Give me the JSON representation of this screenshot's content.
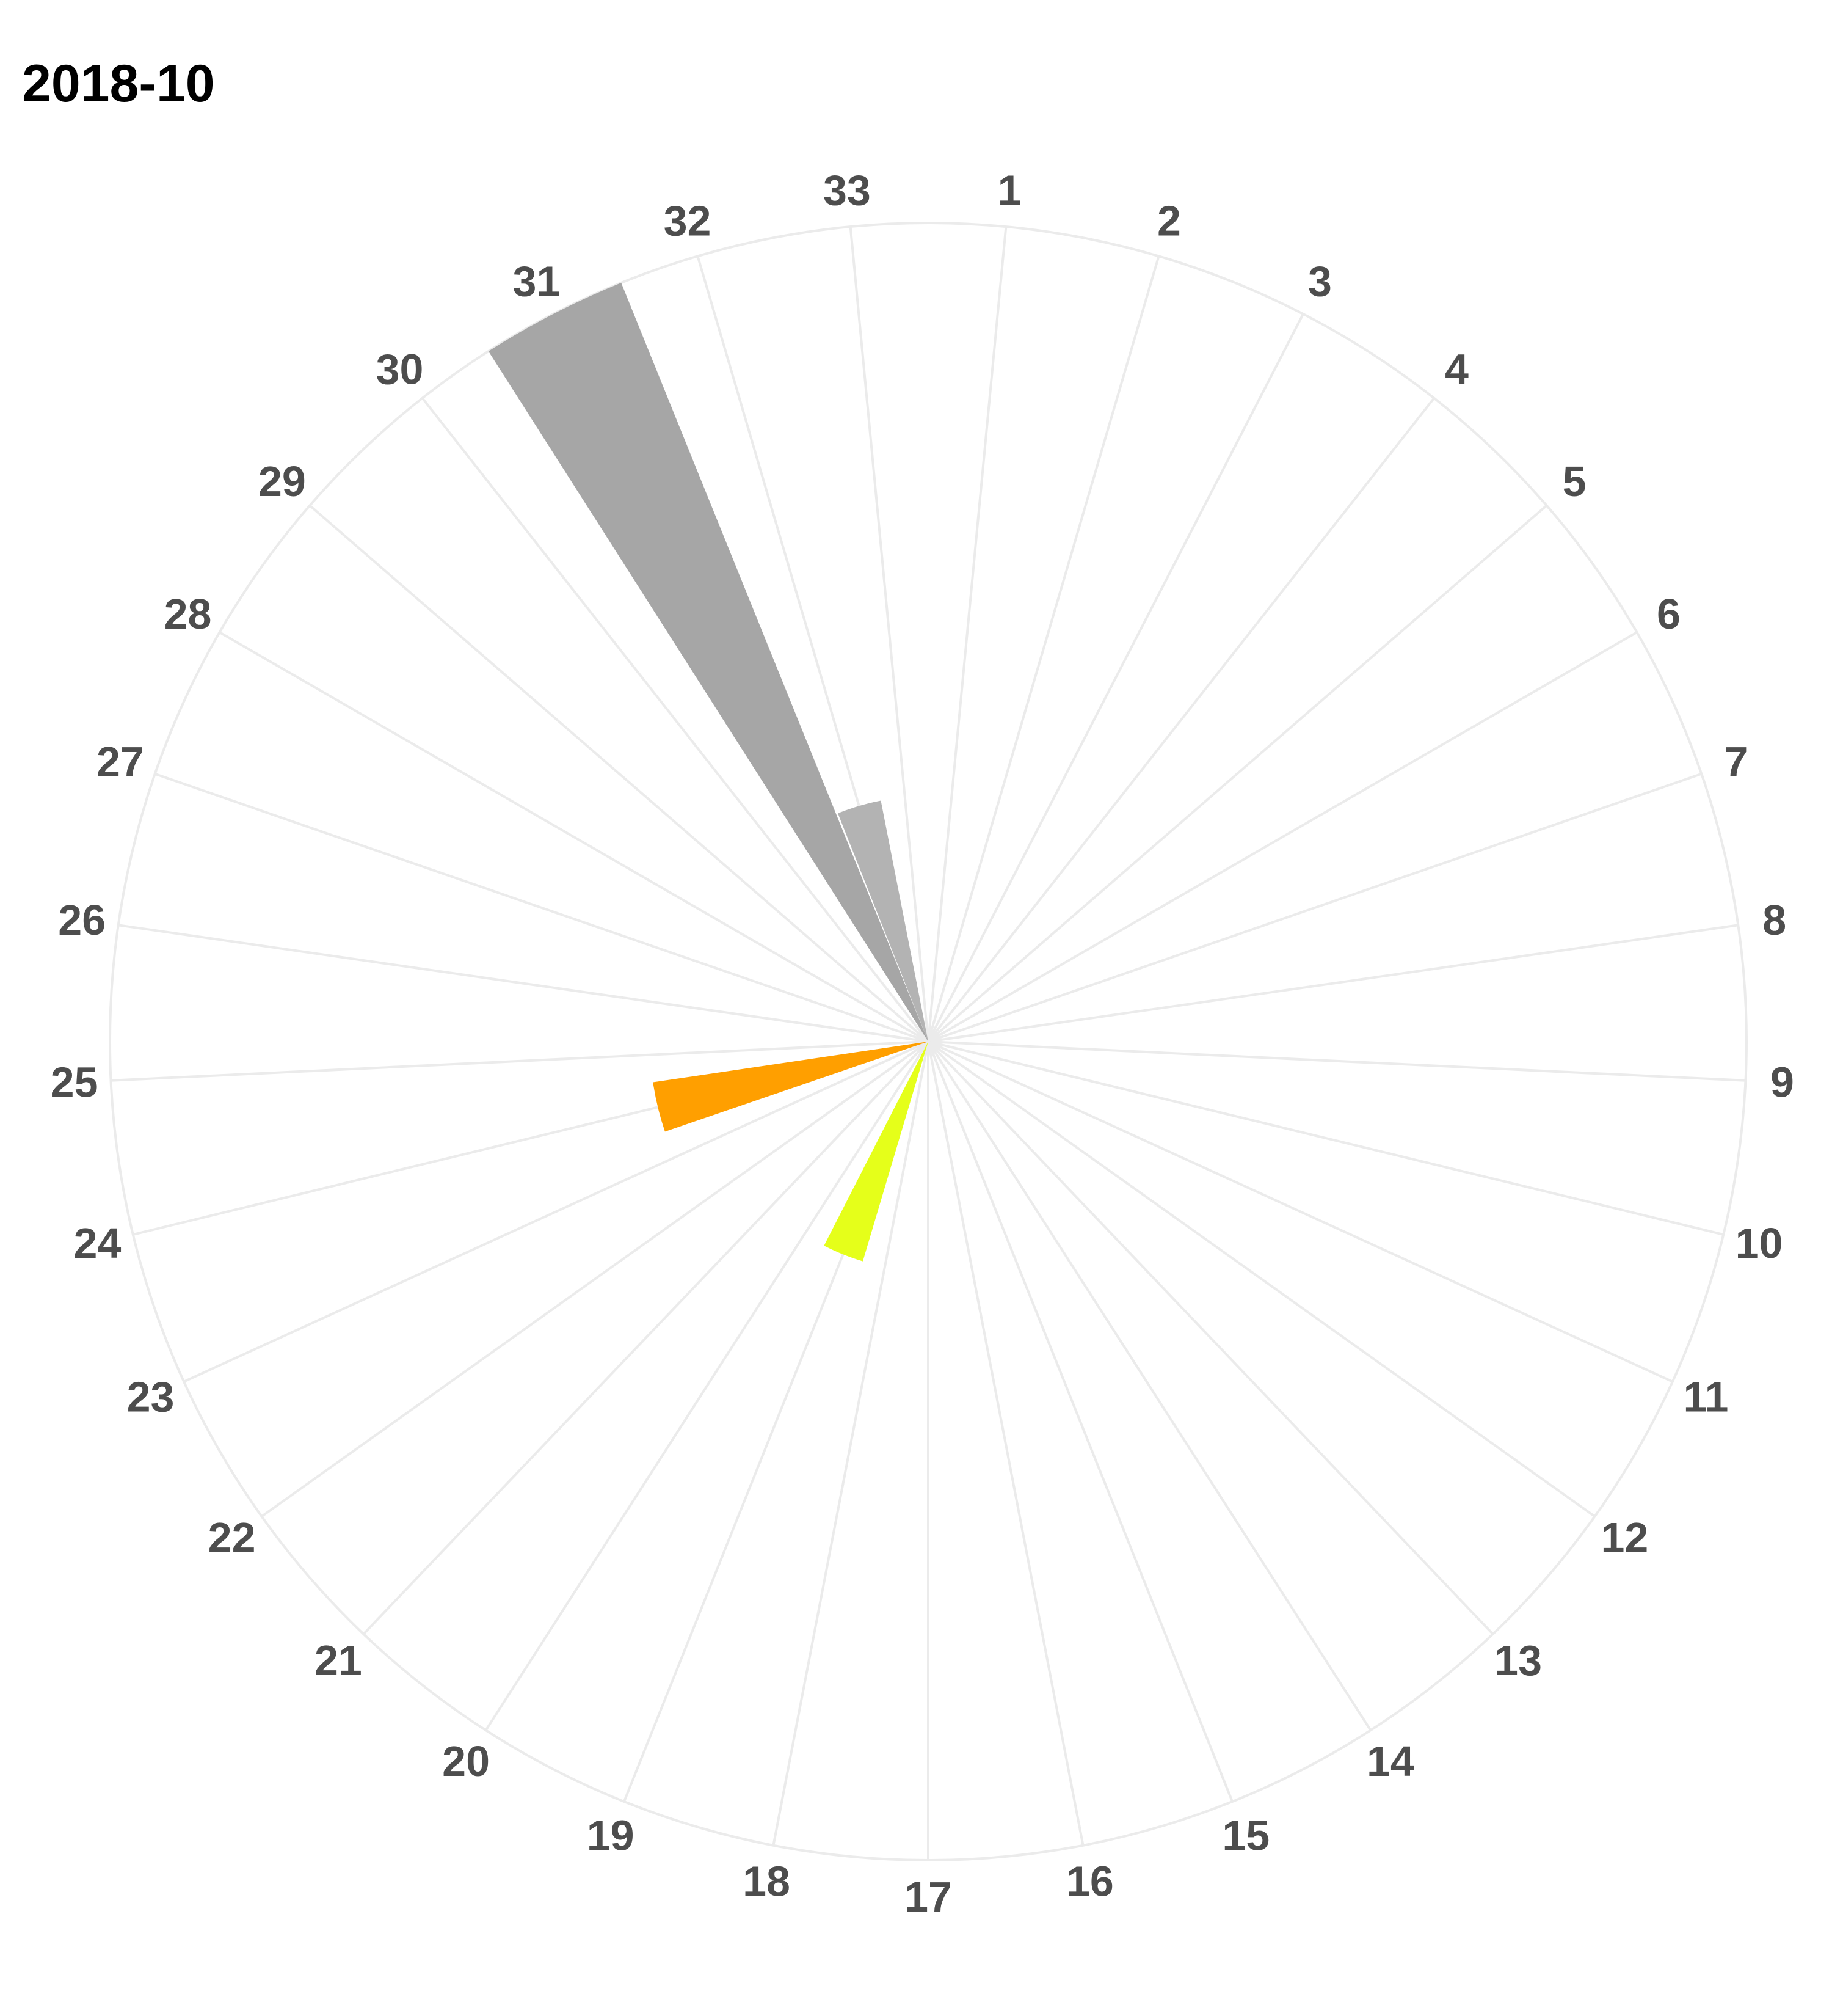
{
  "chart_data": {
    "type": "bar",
    "subtype": "polar",
    "title": "2018-10",
    "xlabel": "",
    "ylabel": "",
    "categories": [
      "1",
      "2",
      "3",
      "4",
      "5",
      "6",
      "7",
      "8",
      "9",
      "10",
      "11",
      "12",
      "13",
      "14",
      "15",
      "16",
      "17",
      "18",
      "19",
      "20",
      "21",
      "22",
      "23",
      "24",
      "25",
      "26",
      "27",
      "28",
      "29",
      "30",
      "31",
      "32",
      "33"
    ],
    "values": [
      0,
      0,
      0,
      0,
      0,
      0,
      0,
      0,
      0,
      0,
      0,
      0,
      0,
      0,
      0,
      0,
      0,
      0,
      0.28,
      0,
      0,
      0,
      0,
      0.34,
      0,
      0,
      0,
      0,
      0,
      0,
      1.0,
      0.3,
      0
    ],
    "bar_colors": {
      "19": "#e5ff1a",
      "24": "#ff9f00",
      "31": "#a6a6a6",
      "32": "#b3b3b3"
    },
    "ylim": [
      0,
      1.0
    ],
    "grid": true,
    "legend": "none",
    "colors": {
      "grid": "#ebebeb",
      "tick_label": "#4d4d4d",
      "default_bar": "#a6a6a6"
    }
  }
}
